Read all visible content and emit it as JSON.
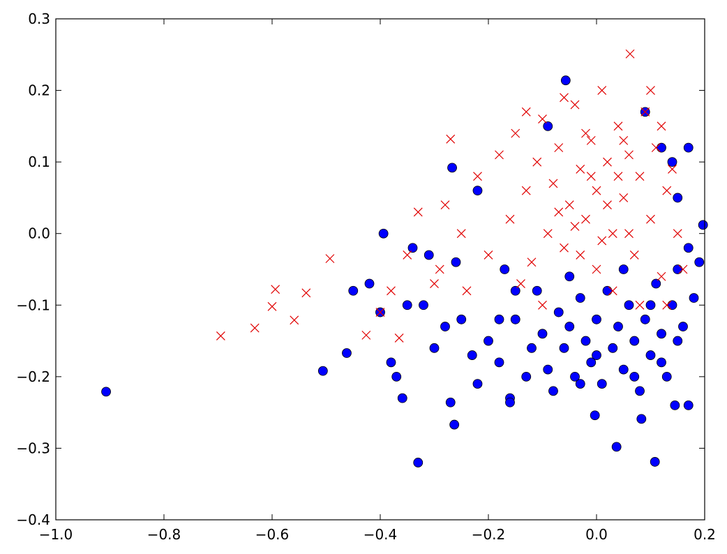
{
  "chart_data": {
    "type": "scatter",
    "xlim": [
      -1.0,
      0.2
    ],
    "ylim": [
      -0.4,
      0.3
    ],
    "xticks": [
      {
        "value": -1.0,
        "label": "−1.0"
      },
      {
        "value": -0.8,
        "label": "−0.8"
      },
      {
        "value": -0.6,
        "label": "−0.6"
      },
      {
        "value": -0.4,
        "label": "−0.4"
      },
      {
        "value": -0.2,
        "label": "−0.2"
      },
      {
        "value": 0.0,
        "label": "0.0"
      },
      0.2
    ],
    "yticks": [
      {
        "value": -0.4,
        "label": "−0.4"
      },
      {
        "value": -0.3,
        "label": "−0.3"
      },
      {
        "value": -0.2,
        "label": "−0.2"
      },
      {
        "value": -0.1,
        "label": "−0.1"
      },
      {
        "value": 0.0,
        "label": "0.0"
      },
      0.1,
      0.2,
      0.3
    ],
    "series": [
      {
        "color": "#0000ff",
        "marker": "o",
        "x": [
          -0.907,
          -0.506,
          -0.33,
          0.037,
          0.108,
          -0.057,
          -0.263,
          -0.003,
          0.083,
          -0.359,
          -0.462,
          -0.394,
          0.197,
          -0.267,
          -0.45,
          -0.42,
          -0.4,
          -0.38,
          -0.37,
          -0.35,
          -0.32,
          -0.3,
          -0.28,
          -0.25,
          -0.23,
          -0.22,
          -0.2,
          -0.18,
          -0.16,
          -0.15,
          -0.13,
          -0.12,
          -0.1,
          -0.09,
          -0.08,
          -0.07,
          -0.06,
          -0.05,
          -0.04,
          -0.03,
          -0.02,
          -0.01,
          0.0,
          0.01,
          0.02,
          0.03,
          0.04,
          0.05,
          0.06,
          0.07,
          0.08,
          0.09,
          0.1,
          0.11,
          0.12,
          0.13,
          0.14,
          0.15,
          0.16,
          0.17,
          0.18,
          0.19,
          0.15,
          0.14,
          0.12,
          0.17,
          0.09,
          -0.09,
          -0.22,
          -0.11,
          -0.05,
          0.05,
          0.1,
          -0.15,
          0.0,
          -0.03,
          0.07,
          0.12,
          -0.18,
          -0.26,
          -0.31,
          -0.34,
          -0.17,
          0.15,
          0.17,
          0.145,
          -0.27,
          -0.16
        ],
        "values": [
          -0.221,
          -0.192,
          -0.32,
          -0.298,
          -0.319,
          0.214,
          -0.267,
          -0.254,
          -0.259,
          -0.23,
          -0.167,
          0.0,
          0.012,
          0.092,
          -0.08,
          -0.07,
          -0.11,
          -0.18,
          -0.2,
          -0.1,
          -0.1,
          -0.16,
          -0.13,
          -0.12,
          -0.17,
          -0.21,
          -0.15,
          -0.18,
          -0.23,
          -0.12,
          -0.2,
          -0.16,
          -0.14,
          -0.19,
          -0.22,
          -0.11,
          -0.16,
          -0.13,
          -0.2,
          -0.09,
          -0.15,
          -0.18,
          -0.12,
          -0.21,
          -0.08,
          -0.16,
          -0.13,
          -0.19,
          -0.1,
          -0.15,
          -0.22,
          -0.12,
          -0.17,
          -0.07,
          -0.14,
          -0.2,
          -0.1,
          -0.05,
          -0.13,
          -0.02,
          -0.09,
          -0.04,
          0.05,
          0.1,
          0.12,
          0.12,
          0.17,
          0.15,
          0.06,
          -0.08,
          -0.06,
          -0.05,
          -0.1,
          -0.08,
          -0.17,
          -0.21,
          -0.2,
          -0.18,
          -0.12,
          -0.04,
          -0.03,
          -0.02,
          -0.05,
          -0.15,
          -0.24,
          -0.24,
          -0.236,
          -0.236
        ]
      },
      {
        "color": "#e00000",
        "marker": "x",
        "x": [
          -0.695,
          -0.632,
          -0.594,
          -0.6,
          -0.559,
          -0.537,
          -0.493,
          0.062,
          -0.426,
          -0.365,
          -0.27,
          -0.28,
          -0.25,
          -0.22,
          -0.2,
          -0.18,
          -0.16,
          -0.15,
          -0.13,
          -0.12,
          -0.11,
          -0.1,
          -0.09,
          -0.08,
          -0.07,
          -0.06,
          -0.05,
          -0.04,
          -0.03,
          -0.02,
          -0.01,
          0.0,
          0.0,
          0.01,
          0.02,
          0.03,
          0.04,
          0.05,
          0.06,
          0.07,
          0.08,
          0.09,
          0.1,
          0.11,
          0.12,
          0.13,
          0.14,
          -0.04,
          -0.02,
          0.02,
          0.06,
          -0.07,
          0.03,
          -0.1,
          0.08,
          -0.14,
          0.12,
          0.1,
          -0.06,
          -0.3,
          -0.35,
          -0.38,
          -0.4,
          -0.33,
          -0.29,
          -0.24,
          -0.13,
          0.15,
          0.16,
          0.13,
          0.04,
          -0.01,
          0.01,
          0.05,
          -0.03
        ],
        "values": [
          -0.143,
          -0.132,
          -0.078,
          -0.102,
          -0.121,
          -0.083,
          -0.035,
          0.251,
          -0.142,
          -0.146,
          0.132,
          0.04,
          0.0,
          0.08,
          -0.03,
          0.11,
          0.02,
          0.14,
          0.06,
          -0.04,
          0.1,
          0.16,
          0.0,
          0.07,
          0.12,
          -0.02,
          0.04,
          0.18,
          0.09,
          0.02,
          0.13,
          0.06,
          -0.05,
          0.2,
          0.1,
          0.0,
          0.15,
          0.05,
          0.11,
          -0.03,
          0.08,
          0.17,
          0.02,
          0.12,
          -0.06,
          0.06,
          0.09,
          0.01,
          0.14,
          0.04,
          0.0,
          0.03,
          -0.08,
          -0.1,
          -0.1,
          -0.07,
          0.15,
          0.2,
          0.19,
          -0.07,
          -0.03,
          -0.08,
          -0.11,
          0.03,
          -0.05,
          -0.08,
          0.17,
          0.0,
          -0.05,
          -0.1,
          0.08,
          0.08,
          -0.01,
          0.13,
          -0.03
        ]
      }
    ]
  }
}
